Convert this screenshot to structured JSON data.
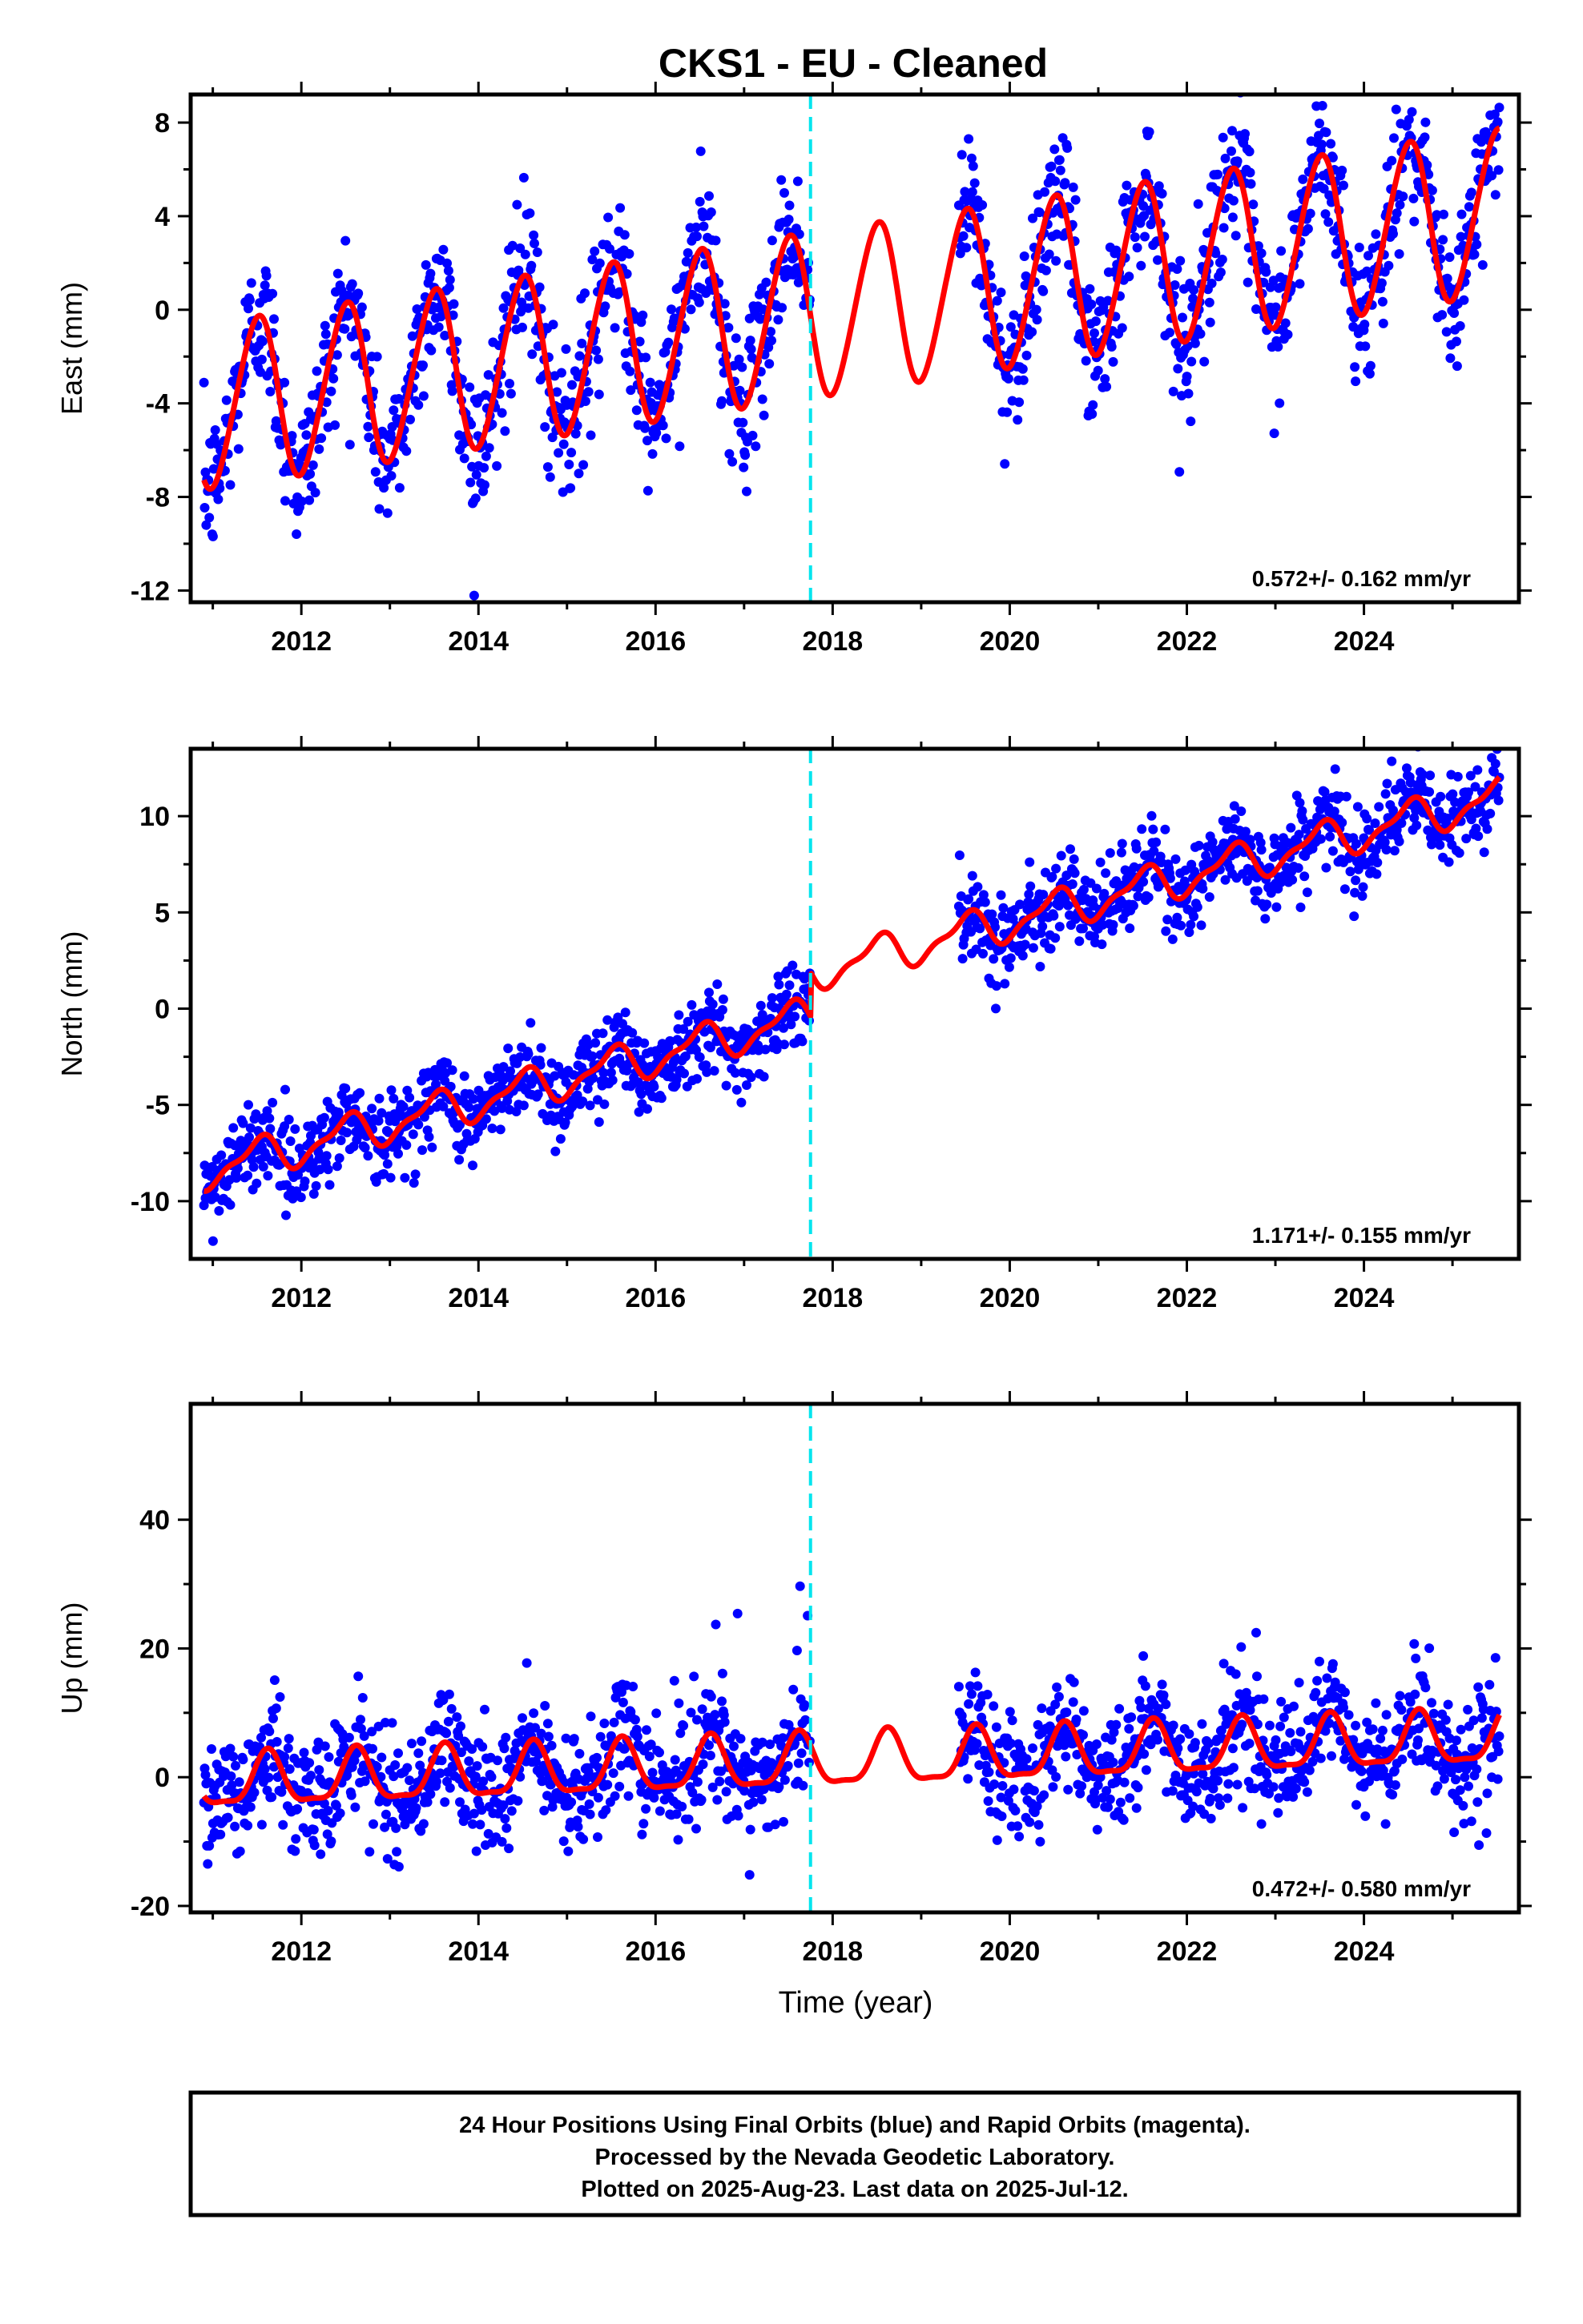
{
  "title": "CKS1  - EU - Cleaned",
  "x_axis_label": "Time (year)",
  "footer": {
    "line1": "24 Hour Positions Using Final Orbits (blue) and Rapid Orbits (magenta).",
    "line2": "Processed by the Nevada Geodetic Laboratory.",
    "line3": "Plotted on 2025-Aug-23. Last data on 2025-Jul-12."
  },
  "colors": {
    "points": "#0000ff",
    "model": "#ff0000",
    "equipment_change_line": "#00e5ee",
    "axes": "#000000"
  },
  "chart_data": [
    {
      "type": "scatter",
      "component": "East",
      "ylabel": "East (mm)",
      "xlim": [
        2010.75,
        2025.75
      ],
      "ylim": [
        -12.5,
        9.2
      ],
      "xticks": [
        "2012",
        "2014",
        "2016",
        "2018",
        "2020",
        "2022",
        "2024"
      ],
      "yticks": [
        "8",
        "4",
        "0",
        "-4",
        "-8",
        "-12"
      ],
      "ytick_values": [
        8,
        4,
        0,
        -4,
        -8,
        -12
      ],
      "rate_label": "0.572+/- 0.162 mm/yr",
      "equipment_change_year": 2017.75,
      "data_gap_years": [
        2017.75,
        2019.42
      ],
      "model": {
        "offset_at_2011": -4.1,
        "rate": 0.572,
        "annual_amplitude": 3.5,
        "annual_peak_phase": 0.5,
        "semiannual_amplitude": 0.3,
        "step": 0
      },
      "scatter_noise": 1.5
    },
    {
      "type": "scatter",
      "component": "North",
      "ylabel": "North (mm)",
      "xlim": [
        2010.75,
        2025.75
      ],
      "ylim": [
        -13,
        13.5
      ],
      "xticks": [
        "2012",
        "2014",
        "2016",
        "2018",
        "2020",
        "2022",
        "2024"
      ],
      "yticks": [
        "10",
        "5",
        "0",
        "-5",
        "-10"
      ],
      "ytick_values": [
        10,
        5,
        0,
        -5,
        -10
      ],
      "rate_label": "1.171+/- 0.155 mm/yr",
      "equipment_change_year": 2017.75,
      "data_gap_years": [
        2017.75,
        2019.42
      ],
      "model": {
        "offset_at_2011": -8.3,
        "rate": 1.171,
        "annual_amplitude": 0.9,
        "annual_peak_phase": 0.5,
        "semiannual_amplitude": 0.35,
        "step": 2.3
      },
      "scatter_noise": 1.1
    },
    {
      "type": "scatter",
      "component": "Up",
      "ylabel": "Up (mm)",
      "xlim": [
        2010.75,
        2025.75
      ],
      "ylim": [
        -21,
        58
      ],
      "xticks": [
        "2012",
        "2014",
        "2016",
        "2018",
        "2020",
        "2022",
        "2024"
      ],
      "yticks": [
        "40",
        "20",
        "0",
        "-20"
      ],
      "ytick_values": [
        40,
        20,
        0,
        -20
      ],
      "rate_label": "0.472+/- 0.580 mm/yr",
      "equipment_change_year": 2017.75,
      "data_gap_years": [
        2017.75,
        2019.42
      ],
      "model": {
        "offset_at_2011": -1.0,
        "rate": 0.472,
        "annual_amplitude": 4.0,
        "annual_peak_phase": 0.62,
        "semiannual_amplitude": 1.2,
        "step": 0
      },
      "scatter_noise": 4.5
    }
  ]
}
